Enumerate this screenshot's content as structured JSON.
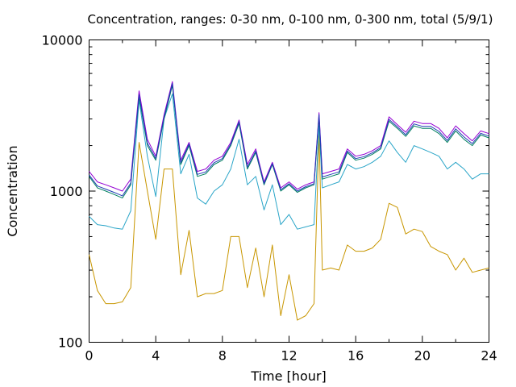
{
  "chart_data": {
    "type": "line",
    "title": "Concentration, ranges: 0-30 nm, 0-100 nm, 0-300 nm, total (5/9/1)",
    "xlabel": "Time [hour]",
    "ylabel": "Concentration",
    "xlim": [
      0,
      24
    ],
    "ylim": [
      100,
      10000
    ],
    "yscale": "log",
    "grid": false,
    "x_ticks": [
      0,
      4,
      8,
      12,
      16,
      20,
      24
    ],
    "x_tick_labels": [
      "0",
      "4",
      "8",
      "12",
      "16",
      "20",
      "24"
    ],
    "y_ticks": [
      100,
      1000,
      10000
    ],
    "y_tick_labels": [
      "100",
      "1000",
      "10000"
    ],
    "x": [
      0,
      0.5,
      1,
      1.5,
      2,
      2.5,
      3,
      3.5,
      4,
      4.5,
      5,
      5.5,
      6,
      6.5,
      7,
      7.5,
      8,
      8.5,
      9,
      9.5,
      10,
      10.5,
      11,
      11.5,
      12,
      12.5,
      13,
      13.5,
      13.8,
      14,
      14.5,
      15,
      15.5,
      16,
      16.5,
      17,
      17.5,
      18,
      18.5,
      19,
      19.5,
      20,
      20.5,
      21,
      21.5,
      22,
      22.5,
      23,
      23.5,
      24
    ],
    "series": [
      {
        "color": "#c89600",
        "values": [
          380,
          220,
          180,
          180,
          185,
          230,
          2100,
          1000,
          480,
          1400,
          1400,
          280,
          550,
          200,
          210,
          210,
          220,
          500,
          500,
          230,
          420,
          200,
          440,
          150,
          280,
          140,
          150,
          180,
          2400,
          300,
          310,
          300,
          440,
          400,
          400,
          420,
          480,
          830,
          780,
          520,
          560,
          540,
          430,
          400,
          380,
          300,
          360,
          290,
          300,
          310
        ]
      },
      {
        "color": "#2aa5c8",
        "values": [
          680,
          600,
          590,
          570,
          560,
          740,
          4000,
          1700,
          920,
          3000,
          4400,
          1300,
          1750,
          900,
          820,
          1000,
          1100,
          1400,
          2200,
          1100,
          1250,
          750,
          1100,
          600,
          700,
          560,
          580,
          600,
          2700,
          1050,
          1100,
          1150,
          1500,
          1400,
          1450,
          1550,
          1700,
          2150,
          1800,
          1550,
          2000,
          1900,
          1800,
          1700,
          1400,
          1550,
          1400,
          1200,
          1300,
          1300
        ]
      },
      {
        "color": "#008060",
        "values": [
          1250,
          1050,
          1000,
          950,
          900,
          1100,
          4200,
          2000,
          1600,
          3000,
          5000,
          1500,
          2000,
          1250,
          1300,
          1500,
          1600,
          2000,
          2800,
          1400,
          1800,
          1100,
          1500,
          1000,
          1100,
          980,
          1050,
          1100,
          3100,
          1200,
          1250,
          1300,
          1800,
          1600,
          1650,
          1750,
          1900,
          2900,
          2600,
          2300,
          2700,
          2600,
          2600,
          2400,
          2100,
          2500,
          2200,
          2000,
          2350,
          2250
        ]
      },
      {
        "color": "#9400d3",
        "values": [
          1350,
          1150,
          1100,
          1050,
          1000,
          1200,
          4600,
          2200,
          1700,
          3200,
          5300,
          1600,
          2100,
          1350,
          1400,
          1600,
          1700,
          2100,
          2950,
          1500,
          1900,
          1150,
          1550,
          1050,
          1150,
          1030,
          1100,
          1150,
          3300,
          1300,
          1350,
          1400,
          1900,
          1700,
          1750,
          1850,
          2000,
          3100,
          2750,
          2450,
          2900,
          2800,
          2800,
          2600,
          2250,
          2700,
          2400,
          2150,
          2500,
          2400
        ]
      },
      {
        "color": "#1e3cb4",
        "values": [
          1280,
          1080,
          1030,
          980,
          930,
          1130,
          4350,
          2080,
          1640,
          3080,
          5150,
          1540,
          2050,
          1290,
          1340,
          1540,
          1640,
          2040,
          2880,
          1440,
          1840,
          1120,
          1520,
          1020,
          1120,
          1000,
          1070,
          1120,
          3200,
          1240,
          1290,
          1340,
          1840,
          1640,
          1690,
          1790,
          1940,
          2980,
          2660,
          2360,
          2780,
          2680,
          2680,
          2480,
          2160,
          2580,
          2280,
          2060,
          2410,
          2310
        ]
      }
    ]
  }
}
